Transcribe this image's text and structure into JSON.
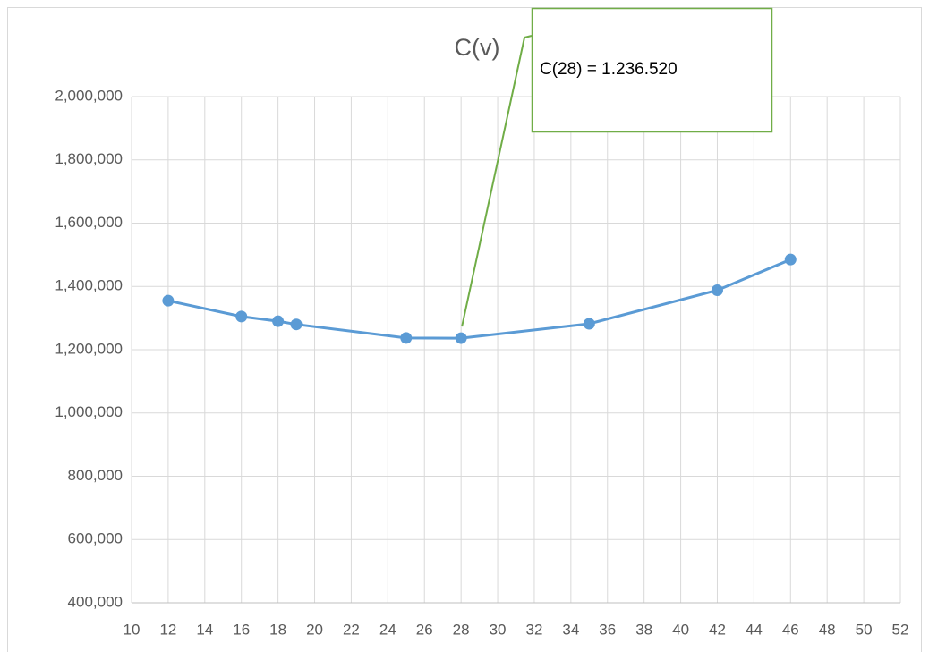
{
  "chart_data": {
    "type": "line",
    "title": "C(v)",
    "x": [
      12,
      16,
      18,
      19,
      25,
      28,
      35,
      42,
      46
    ],
    "series": [
      {
        "name": "C(v)",
        "color": "#5b9bd5",
        "values": [
          1355000,
          1305000,
          1290000,
          1280000,
          1237000,
          1236520,
          1282000,
          1388000,
          1485000
        ]
      }
    ],
    "xlim": [
      10,
      52
    ],
    "xticks": [
      10,
      12,
      14,
      16,
      18,
      20,
      22,
      24,
      26,
      28,
      30,
      32,
      34,
      36,
      38,
      40,
      42,
      44,
      46,
      48,
      50,
      52
    ],
    "ylim": [
      400000,
      2000000
    ],
    "yticks": [
      {
        "value": 400000,
        "label": "400,000"
      },
      {
        "value": 600000,
        "label": "600,000"
      },
      {
        "value": 800000,
        "label": "800,000"
      },
      {
        "value": 1000000,
        "label": "1,000,000"
      },
      {
        "value": 1200000,
        "label": "1,200,000"
      },
      {
        "value": 1400000,
        "label": "1,400,000"
      },
      {
        "value": 1600000,
        "label": "1,600,000"
      },
      {
        "value": 1800000,
        "label": "1,800,000"
      },
      {
        "value": 2000000,
        "label": "2,000,000"
      }
    ],
    "grid": true,
    "annotation": {
      "text": "C(28) = 1.236.520",
      "point": 5
    }
  }
}
